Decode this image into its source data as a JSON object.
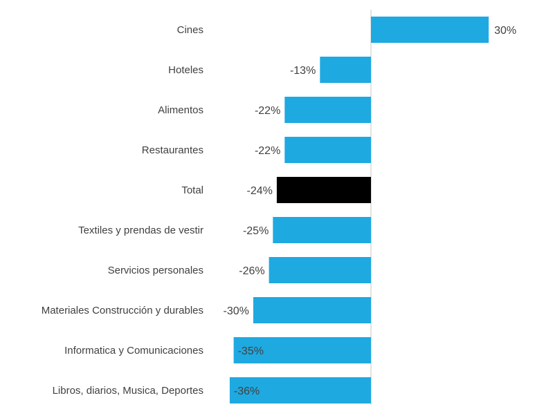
{
  "chart_data": {
    "type": "bar",
    "orientation": "horizontal",
    "categories": [
      "Cines",
      "Hoteles",
      "Alimentos",
      "Restaurantes",
      "Total",
      "Textiles y prendas de vestir",
      "Servicios personales",
      "Materiales Construcción y durables",
      "Informatica y Comunicaciones",
      "Libros, diarios, Musica, Deportes"
    ],
    "values": [
      30,
      -13,
      -22,
      -22,
      -24,
      -25,
      -26,
      -30,
      -35,
      -36
    ],
    "value_labels": [
      "30%",
      "-13%",
      "-22%",
      "-22%",
      "-24%",
      "-25%",
      "-26%",
      "-30%",
      "-35%",
      "-36%"
    ],
    "unit": "%",
    "xlim": [
      -36,
      30
    ],
    "grid": false,
    "legend": "none",
    "colors": {
      "bar": "#1fa9e1",
      "highlight": "#000000",
      "axis": "#d9d9d9",
      "text": "#404040"
    },
    "highlight_category": "Total"
  }
}
